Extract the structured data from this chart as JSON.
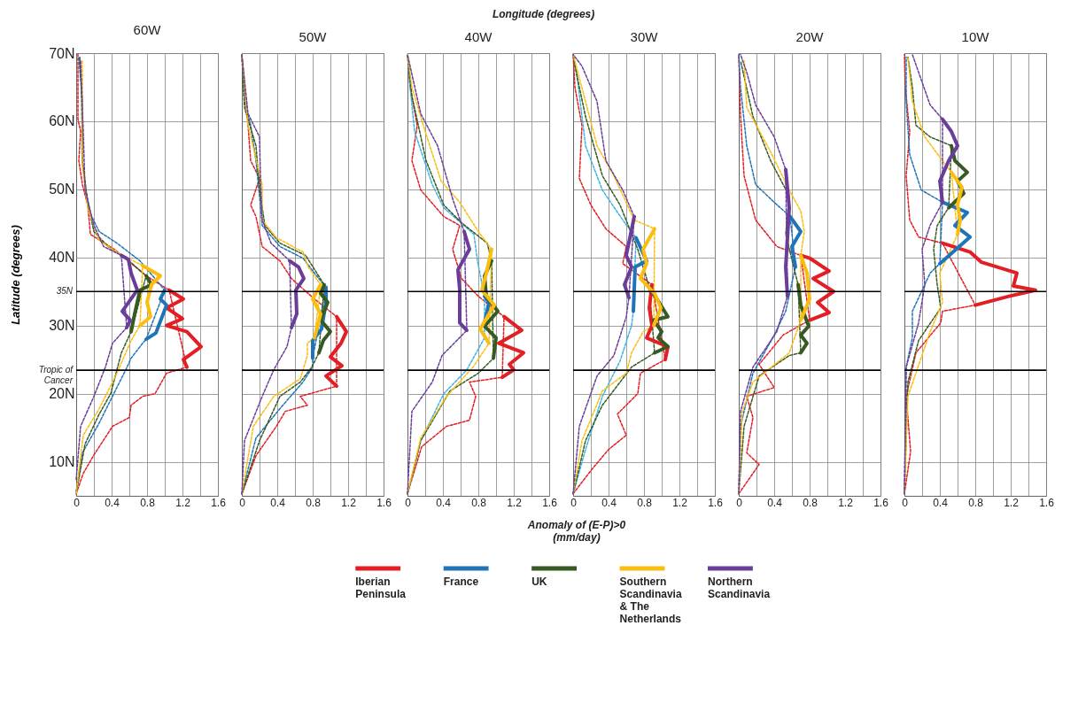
{
  "chart_data": [
    {
      "type": "line",
      "title": "60W",
      "ylabel": "Latitude (degrees)",
      "annotations": [
        "Longitude (degrees)",
        "Anomaly of (E-P)>0\n(mm/day)"
      ],
      "legend": "bottom",
      "grid": true,
      "xlim": [
        0,
        1.6
      ],
      "xticks": [
        0,
        {
          "value": 0.2,
          "label": null
        },
        0.4,
        {
          "value": 0.6,
          "label": null
        },
        0.8,
        {
          "value": 1,
          "label": null
        },
        1.2,
        {
          "value": 1.4,
          "label": null
        },
        1.6
      ],
      "ylim": [
        5,
        70
      ],
      "yticks": [
        {
          "value": 10,
          "label": "10N"
        },
        {
          "value": 20,
          "label": "20N"
        },
        {
          "value": 30,
          "label": "30N"
        },
        {
          "value": 40,
          "label": "40N"
        },
        {
          "value": 50,
          "label": "50N"
        },
        {
          "value": 60,
          "label": "60N"
        },
        {
          "value": 70,
          "label": "70N"
        }
      ],
      "ref_lines": [
        {
          "axis": "y",
          "value": 35,
          "label": "35N"
        },
        {
          "axis": "y",
          "value": 23.44,
          "label": "Tropic of Cancer"
        }
      ],
      "series": [
        {
          "color": "#e31e24",
          "line_style": "dashed",
          "x": [
            0,
            0.08,
            0.2,
            0.41,
            0.6,
            0.62,
            0.75,
            0.89,
            1.02,
            1.25,
            1.05,
            0.79,
            0.43,
            0.16,
            0.15,
            0.13,
            0.07,
            0.03,
            0.05,
            0.02,
            0.02
          ],
          "values": [
            5.3,
            8.3,
            11,
            15.2,
            16.5,
            18.3,
            19.6,
            20,
            23,
            23.9,
            35.2,
            37.3,
            41.2,
            43.4,
            45,
            47.7,
            50.7,
            54.2,
            58.5,
            60.3,
            69.8
          ]
        },
        {
          "color": "#1f74b9",
          "line_style": "dashed",
          "x": [
            0,
            0.07,
            0.26,
            0.39,
            0.49,
            0.56,
            0.62,
            0.75,
            0.79,
            1.0,
            0.72,
            0.46,
            0.26,
            0.16,
            0.11,
            0.07,
            0.07,
            0.03
          ],
          "values": [
            5.7,
            11.3,
            15.7,
            19.1,
            21.7,
            23.5,
            25.2,
            27.4,
            28,
            35.2,
            39.5,
            42.1,
            43.8,
            46.4,
            49.9,
            54.2,
            62.9,
            69.4
          ]
        },
        {
          "color": "#375a22",
          "line_style": "dashed",
          "x": [
            0,
            0.1,
            0.26,
            0.39,
            0.51,
            0.62,
            0.79,
            0.56,
            0.36,
            0.2,
            0.13,
            0.07,
            0.06,
            0.04
          ],
          "values": [
            5.3,
            12.6,
            17,
            20,
            26,
            29.1,
            37.3,
            39.9,
            41.6,
            43.8,
            48.1,
            54.2,
            65,
            69.5
          ]
        },
        {
          "color": "#fbbd0f",
          "line_style": "dashed",
          "x": [
            0,
            0.08,
            0.26,
            0.46,
            0.62,
            0.72,
            0.75,
            0.52,
            0.26,
            0.13,
            0.07,
            0.07
          ],
          "values": [
            5.3,
            13.9,
            17.8,
            23,
            27.8,
            30,
            38.8,
            40.3,
            42.5,
            47.3,
            53.3,
            68.9
          ]
        },
        {
          "color": "#6a3d9a",
          "line_style": "dashed",
          "x": [
            0,
            0.05,
            0.2,
            0.33,
            0.41,
            0.57,
            0.51,
            0.31,
            0.2,
            0.1,
            0.08,
            0.05
          ],
          "values": [
            7.4,
            15.2,
            19.6,
            23.9,
            27.4,
            29.7,
            40.3,
            41.6,
            44.7,
            49.9,
            58.5,
            68.9
          ]
        },
        {
          "name": "Iberian Peninsula",
          "color": "#e31e24",
          "x": [
            1.25,
            1.21,
            1.41,
            1.25,
            1.02,
            1.2,
            1.02,
            1.21,
            1.05
          ],
          "values": [
            23.9,
            25,
            26.9,
            29.1,
            30,
            31,
            32.6,
            33.9,
            35.2
          ]
        },
        {
          "name": "France",
          "color": "#1f74b9",
          "x": [
            0.79,
            0.9,
            1.02,
            0.95,
            1.0
          ],
          "values": [
            28,
            28.9,
            33,
            33.9,
            35.2
          ]
        },
        {
          "name": "UK",
          "color": "#375a22",
          "x": [
            0.62,
            0.66,
            0.72,
            0.85,
            0.79
          ],
          "values": [
            29.1,
            31.7,
            35.2,
            36,
            37.3
          ]
        },
        {
          "name": "Southern Scandinavia & The Netherlands",
          "color": "#fbbd0f",
          "x": [
            0.72,
            0.84,
            0.8,
            0.85,
            0.95,
            0.75
          ],
          "values": [
            30,
            31.3,
            33.4,
            36,
            37.3,
            38.8
          ]
        },
        {
          "name": "Northern Scandinavia",
          "color": "#6a3d9a",
          "x": [
            0.57,
            0.61,
            0.52,
            0.69,
            0.62,
            0.59,
            0.51
          ],
          "values": [
            29.7,
            30.8,
            32.1,
            35.2,
            37.7,
            39.7,
            40.3
          ]
        }
      ]
    },
    {
      "type": "line",
      "title": "50W",
      "grid": true,
      "tick_labels": "x",
      "xlim": [
        0,
        1.6
      ],
      "xticks": [
        0,
        {
          "value": 0.2,
          "label": null
        },
        0.4,
        {
          "value": 0.6,
          "label": null
        },
        0.8,
        {
          "value": 1,
          "label": null
        },
        1.2,
        {
          "value": 1.4,
          "label": null
        },
        1.6
      ],
      "ylim": [
        5,
        70
      ],
      "yticks": [
        {
          "value": 10,
          "label": null
        },
        {
          "value": 20,
          "label": null
        },
        {
          "value": 30,
          "label": null
        },
        {
          "value": 40,
          "label": null
        },
        {
          "value": 50,
          "label": null
        },
        {
          "value": 60,
          "label": null
        },
        {
          "value": 70,
          "label": null
        }
      ],
      "ref_lines": [
        {
          "axis": "y",
          "value": 35
        },
        {
          "axis": "y",
          "value": 23.44
        }
      ],
      "series": [
        {
          "color": "#e31e24",
          "line_style": "dashed",
          "x": [
            0,
            0.16,
            0.39,
            0.49,
            0.74,
            0.66,
            1.07,
            1.07,
            0.82,
            0.56,
            0.43,
            0.23,
            0.16,
            0.1,
            0.2,
            0.1,
            0.07,
            0
          ],
          "values": [
            5.3,
            10.9,
            15.2,
            17.4,
            18.3,
            19.6,
            21.1,
            31.3,
            33.9,
            36.9,
            39.5,
            41.6,
            46,
            47.7,
            51.6,
            54.2,
            59.4,
            69.8
          ]
        },
        {
          "color": "#1f74b9",
          "line_style": "dashed",
          "x": [
            0,
            0.16,
            0.43,
            0.69,
            0.8,
            0.8,
            0.95,
            0.82,
            0.69,
            0.43,
            0.23,
            0.2,
            0.16,
            0.1,
            0.03,
            0
          ],
          "values": [
            5.3,
            13.5,
            17.8,
            21.7,
            23.9,
            25.2,
            35.6,
            37.7,
            39.9,
            41.6,
            44.7,
            49,
            54.2,
            59.4,
            62.9,
            69.8
          ]
        },
        {
          "color": "#375a22",
          "line_style": "dashed",
          "x": [
            0,
            0.2,
            0.43,
            0.66,
            0.79,
            0.87,
            0.93,
            0.72,
            0.43,
            0.26,
            0.2,
            0.16,
            0.03,
            0
          ],
          "values": [
            5.3,
            13.1,
            19.6,
            21.7,
            23.9,
            26,
            36,
            40.3,
            42.1,
            44.7,
            49.9,
            56.4,
            62,
            69.8
          ]
        },
        {
          "color": "#fbbd0f",
          "line_style": "dashed",
          "x": [
            0,
            0.13,
            0.36,
            0.66,
            0.74,
            0.74,
            0.82,
            0.89,
            0.75,
            0.69,
            0.39,
            0.23,
            0.23,
            0.07,
            0
          ],
          "values": [
            5.3,
            15.2,
            19.6,
            22.2,
            25.6,
            27.4,
            28.2,
            36,
            38.6,
            40.8,
            42.9,
            45.5,
            50.7,
            59.4,
            69.8
          ]
        },
        {
          "color": "#6a3d9a",
          "line_style": "dashed",
          "x": [
            0,
            0.03,
            0.23,
            0.36,
            0.51,
            0.56,
            0.54,
            0.33,
            0.23,
            0.21,
            0.2,
            0.07,
            0
          ],
          "values": [
            5.3,
            13.1,
            19.6,
            23.5,
            26.9,
            29.7,
            39.5,
            42.1,
            45.5,
            51.6,
            57.7,
            61.1,
            69.8
          ]
        },
        {
          "color": "#e31e24",
          "x": [
            1.07,
            0.95,
            1.13,
            1.0,
            1.12,
            1.18,
            1.07
          ],
          "values": [
            21.1,
            22.6,
            24.1,
            25.4,
            27.4,
            29.1,
            31.3
          ]
        },
        {
          "color": "#1f74b9",
          "x": [
            0.8,
            0.8,
            0.9,
            0.95,
            0.95
          ],
          "values": [
            25.2,
            27.8,
            29.5,
            33.4,
            35.6
          ]
        },
        {
          "color": "#375a22",
          "x": [
            0.87,
            0.92,
            1.0,
            0.89,
            0.97,
            0.89,
            0.93
          ],
          "values": [
            26,
            27.8,
            29.1,
            30.8,
            33.4,
            34.7,
            36
          ]
        },
        {
          "color": "#fbbd0f",
          "x": [
            0.82,
            0.89,
            0.8,
            0.89
          ],
          "values": [
            28.2,
            31.7,
            33.9,
            36
          ]
        },
        {
          "color": "#6a3d9a",
          "x": [
            0.56,
            0.62,
            0.61,
            0.7,
            0.64,
            0.54
          ],
          "values": [
            29.7,
            31.7,
            35.2,
            36.9,
            38.6,
            39.5
          ]
        }
      ]
    },
    {
      "type": "line",
      "title": "40W",
      "grid": true,
      "tick_labels": "x",
      "xlim": [
        0,
        1.6
      ],
      "xticks": [
        0,
        {
          "value": 0.2,
          "label": null
        },
        0.4,
        {
          "value": 0.6,
          "label": null
        },
        0.8,
        {
          "value": 1,
          "label": null
        },
        1.2,
        {
          "value": 1.4,
          "label": null
        },
        1.6
      ],
      "ylim": [
        5,
        70
      ],
      "yticks": [
        {
          "value": 10,
          "label": null
        },
        {
          "value": 20,
          "label": null
        },
        {
          "value": 30,
          "label": null
        },
        {
          "value": 40,
          "label": null
        },
        {
          "value": 50,
          "label": null
        },
        {
          "value": 60,
          "label": null
        },
        {
          "value": 70,
          "label": null
        }
      ],
      "ref_lines": [
        {
          "axis": "y",
          "value": 35
        },
        {
          "axis": "y",
          "value": 23.44
        }
      ],
      "series": [
        {
          "color": "#e31e24",
          "line_style": "dashed",
          "x": [
            0,
            0.16,
            0.44,
            0.7,
            0.77,
            0.7,
            1.07,
            1.09,
            0.8,
            0.61,
            0.51,
            0.59,
            0.41,
            0.15,
            0.05,
            0.11,
            0.03,
            0
          ],
          "values": [
            5.3,
            12.2,
            15.2,
            16.1,
            19.6,
            21.7,
            22.4,
            31.3,
            34.3,
            36.9,
            41.2,
            44.7,
            46,
            49.9,
            54.2,
            59.4,
            65,
            69.8
          ]
        },
        {
          "color": "#3eb3e4",
          "line_style": "dashed",
          "x": [
            0,
            0.15,
            0.41,
            0.67,
            0.87,
            0.87,
            0.87,
            0.79,
            0.75,
            0.41,
            0.28,
            0.08,
            0.03,
            0
          ],
          "values": [
            5.3,
            13.1,
            20,
            23.5,
            28.2,
            30.4,
            34.3,
            39.5,
            43.4,
            47.3,
            50.7,
            58.5,
            65,
            69.8
          ]
        },
        {
          "color": "#375a22",
          "line_style": "dashed",
          "x": [
            0,
            0.15,
            0.48,
            0.8,
            0.97,
            0.95,
            0.9,
            0.61,
            0.41,
            0.21,
            0.05,
            0
          ],
          "values": [
            5.3,
            13.1,
            20.4,
            23,
            25.2,
            39.5,
            42.1,
            45.1,
            47.7,
            54.2,
            63.7,
            69.8
          ]
        },
        {
          "color": "#fbbd0f",
          "line_style": "dashed",
          "x": [
            0,
            0.15,
            0.44,
            0.74,
            0.92,
            0.95,
            0.8,
            0.59,
            0.38,
            0.2,
            0.05,
            0
          ],
          "values": [
            5.3,
            13.5,
            19.6,
            23.9,
            27.4,
            41.2,
            43.8,
            48.1,
            51.2,
            58.5,
            65,
            69.8
          ]
        },
        {
          "color": "#6a3d9a",
          "line_style": "dashed",
          "x": [
            0,
            0.05,
            0.28,
            0.39,
            0.67,
            0.64,
            0.51,
            0.34,
            0.15,
            0
          ],
          "values": [
            5.3,
            17.4,
            21.7,
            25.6,
            29.3,
            43.8,
            48.6,
            56.4,
            61.1,
            69.8
          ]
        },
        {
          "color": "#e31e24",
          "x": [
            1.07,
            1.2,
            1.15,
            1.31,
            1.03,
            1.29,
            1.09
          ],
          "values": [
            22.4,
            23.5,
            24.3,
            26,
            27.4,
            29.3,
            31.3
          ]
        },
        {
          "color": "#1f74b9",
          "x": [
            0.87,
            0.92,
            0.87
          ],
          "values": [
            30.4,
            33.4,
            34.3
          ]
        },
        {
          "color": "#375a22",
          "x": [
            0.97,
            1.0,
            0.87,
            1.02,
            0.89,
            0.87,
            0.95
          ],
          "values": [
            25.2,
            28.2,
            29.9,
            32.1,
            34.3,
            37.3,
            39.5
          ]
        },
        {
          "color": "#fbbd0f",
          "x": [
            0.92,
            0.82,
            0.98,
            0.84,
            0.89,
            0.95
          ],
          "values": [
            27.4,
            29.5,
            33,
            35.2,
            37.7,
            41.2
          ]
        },
        {
          "color": "#6a3d9a",
          "x": [
            0.67,
            0.59,
            0.59,
            0.57,
            0.7,
            0.64
          ],
          "values": [
            29.3,
            30.4,
            35.2,
            38.2,
            41.2,
            43.8
          ]
        }
      ]
    },
    {
      "type": "line",
      "title": "30W",
      "grid": true,
      "tick_labels": "x",
      "xlim": [
        0,
        1.6
      ],
      "xticks": [
        0,
        {
          "value": 0.2,
          "label": null
        },
        0.4,
        {
          "value": 0.6,
          "label": null
        },
        0.8,
        {
          "value": 1,
          "label": null
        },
        1.2,
        {
          "value": 1.4,
          "label": null
        },
        1.6
      ],
      "ylim": [
        5,
        70
      ],
      "yticks": [
        {
          "value": 10,
          "label": null
        },
        {
          "value": 20,
          "label": null
        },
        {
          "value": 30,
          "label": null
        },
        {
          "value": 40,
          "label": null
        },
        {
          "value": 50,
          "label": null
        },
        {
          "value": 60,
          "label": null
        },
        {
          "value": 70,
          "label": null
        }
      ],
      "ref_lines": [
        {
          "axis": "y",
          "value": 35
        },
        {
          "axis": "y",
          "value": 23.44
        }
      ],
      "series": [
        {
          "color": "#e31e24",
          "line_style": "dashed",
          "x": [
            0,
            0.2,
            0.4,
            0.6,
            0.5,
            0.73,
            0.76,
            1.04,
            0.89,
            0.56,
            0.6,
            0.37,
            0.2,
            0.07,
            0.1,
            0.02,
            0
          ],
          "values": [
            5.3,
            8.7,
            11.8,
            13.9,
            17,
            20,
            23,
            25,
            36,
            39.1,
            41.6,
            44.2,
            47.7,
            51.6,
            59.4,
            65,
            69.8
          ]
        },
        {
          "color": "#3eb3e4",
          "line_style": "dashed",
          "x": [
            0,
            0.14,
            0.33,
            0.53,
            0.66,
            0.68,
            0.71,
            0.56,
            0.33,
            0.14,
            0.04,
            0
          ],
          "values": [
            5.3,
            11.8,
            19.6,
            24.8,
            30,
            32.1,
            42.9,
            45.5,
            49.9,
            56.4,
            67.2,
            69.8
          ]
        },
        {
          "color": "#375a22",
          "line_style": "dashed",
          "x": [
            0,
            0.14,
            0.33,
            0.66,
            0.92,
            0.86,
            0.73,
            0.53,
            0.33,
            0.14,
            0.02,
            0
          ],
          "values": [
            5.3,
            13.1,
            18.3,
            23.9,
            26,
            35.6,
            41.2,
            47.7,
            52,
            60.7,
            68.1,
            69.8
          ]
        },
        {
          "color": "#fbbd0f",
          "line_style": "dashed",
          "x": [
            0,
            0.1,
            0.33,
            0.6,
            0.66,
            0.79,
            0.91,
            0.92,
            0.69,
            0.46,
            0.27,
            0.14,
            0
          ],
          "values": [
            5.3,
            13.1,
            20.4,
            23,
            26,
            29.1,
            30,
            44.2,
            45.5,
            52,
            56.4,
            62.9,
            69.8
          ]
        },
        {
          "color": "#6a3d9a",
          "line_style": "dashed",
          "x": [
            0,
            0.07,
            0.27,
            0.46,
            0.6,
            0.63,
            0.69,
            0.56,
            0.37,
            0.27,
            0.1,
            0
          ],
          "values": [
            5.3,
            15.2,
            22.6,
            25.6,
            31.3,
            34.1,
            46,
            49.9,
            54.2,
            62.9,
            68.1,
            69.8
          ]
        },
        {
          "color": "#e31e24",
          "x": [
            1.04,
            1.07,
            0.83,
            0.89,
            0.86,
            0.89
          ],
          "values": [
            25,
            26.9,
            28.2,
            30,
            32.6,
            36
          ]
        },
        {
          "color": "#1f74b9",
          "x": [
            0.68,
            0.7,
            0.83,
            0.71
          ],
          "values": [
            32.1,
            38.6,
            39.5,
            42.9
          ]
        },
        {
          "color": "#375a22",
          "x": [
            0.92,
            1.07,
            0.96,
            1.0,
            0.91,
            1.07,
            0.97,
            0.86
          ],
          "values": [
            26,
            26.9,
            28.2,
            29.1,
            30.8,
            31.3,
            33.4,
            35.6
          ]
        },
        {
          "color": "#fbbd0f",
          "x": [
            0.91,
            0.99,
            0.92,
            0.76,
            0.83,
            0.79,
            0.92
          ],
          "values": [
            30,
            32.6,
            34.7,
            36.9,
            39.1,
            41.2,
            44.2
          ]
        },
        {
          "color": "#6a3d9a",
          "x": [
            0.63,
            0.58,
            0.66,
            0.6,
            0.69
          ],
          "values": [
            34.1,
            36,
            38.6,
            40.3,
            46
          ]
        }
      ]
    },
    {
      "type": "line",
      "title": "20W",
      "grid": true,
      "tick_labels": "x",
      "xlim": [
        0,
        1.6
      ],
      "xticks": [
        0,
        {
          "value": 0.2,
          "label": null
        },
        0.4,
        {
          "value": 0.6,
          "label": null
        },
        0.8,
        {
          "value": 1,
          "label": null
        },
        1.2,
        {
          "value": 1.4,
          "label": null
        },
        1.6
      ],
      "ylim": [
        5,
        70
      ],
      "yticks": [
        {
          "value": 10,
          "label": null
        },
        {
          "value": 20,
          "label": null
        },
        {
          "value": 30,
          "label": null
        },
        {
          "value": 40,
          "label": null
        },
        {
          "value": 50,
          "label": null
        },
        {
          "value": 60,
          "label": null
        },
        {
          "value": 70,
          "label": null
        }
      ],
      "ref_lines": [
        {
          "axis": "y",
          "value": 35
        },
        {
          "axis": "y",
          "value": 23.44
        }
      ],
      "series": [
        {
          "color": "#e31e24",
          "line_style": "dashed",
          "x": [
            0,
            0.23,
            0.09,
            0.16,
            0.09,
            0.4,
            0.23,
            0.5,
            0.8,
            0.7,
            0.43,
            0.19,
            0.06,
            0.02,
            0
          ],
          "values": [
            5.3,
            9.6,
            11.3,
            16.5,
            19.6,
            20.9,
            24.3,
            28.6,
            30.8,
            40.3,
            41.6,
            45.5,
            52,
            60.7,
            69.8
          ]
        },
        {
          "color": "#1f74b9",
          "line_style": "dashed",
          "x": [
            0,
            0.02,
            0.16,
            0.4,
            0.53,
            0.64,
            0.58,
            0.4,
            0.19,
            0.09,
            0.02,
            0
          ],
          "values": [
            5.3,
            15.2,
            23,
            28.6,
            32.1,
            38.6,
            46,
            48.1,
            50.7,
            56.4,
            65,
            69.8
          ]
        },
        {
          "color": "#375a22",
          "line_style": "dashed",
          "x": [
            0,
            0.06,
            0.23,
            0.57,
            0.7,
            0.67,
            0.53,
            0.57,
            0.36,
            0.16,
            0.02
          ],
          "values": [
            5.3,
            15.2,
            22.6,
            25.6,
            26,
            36,
            43.4,
            49,
            54.2,
            60.7,
            68.9
          ]
        },
        {
          "color": "#fbbd0f",
          "line_style": "dashed",
          "x": [
            0,
            0.04,
            0.16,
            0.57,
            0.7,
            0.7,
            0.74,
            0.7,
            0.57,
            0.36,
            0.09,
            0.06
          ],
          "values": [
            5.3,
            17.4,
            21.7,
            26,
            30.8,
            40.3,
            43.8,
            46.8,
            49.9,
            55.5,
            62,
            68.9
          ]
        },
        {
          "color": "#6a3d9a",
          "line_style": "dashed",
          "x": [
            0,
            0.02,
            0.16,
            0.43,
            0.55,
            0.53,
            0.4,
            0.19,
            0.09,
            0.02
          ],
          "values": [
            5.3,
            17.4,
            23.9,
            29.1,
            34.3,
            52.9,
            57.7,
            62.4,
            67.2,
            69.8
          ]
        },
        {
          "color": "#e31e24",
          "x": [
            0.8,
            1.02,
            0.89,
            1.07,
            0.84,
            1.02,
            0.8,
            0.7
          ],
          "values": [
            30.8,
            31.9,
            33.4,
            35,
            36.9,
            38,
            39.9,
            40.3
          ]
        },
        {
          "color": "#1f74b9",
          "x": [
            0.64,
            0.6,
            0.7,
            0.58
          ],
          "values": [
            38.6,
            41.6,
            43.8,
            46
          ]
        },
        {
          "color": "#375a22",
          "x": [
            0.7,
            0.77,
            0.7,
            0.79,
            0.7,
            0.67
          ],
          "values": [
            26,
            27.4,
            28.6,
            29.9,
            33,
            36
          ]
        },
        {
          "color": "#fbbd0f",
          "x": [
            0.7,
            0.8,
            0.77,
            0.7
          ],
          "values": [
            30.8,
            33.9,
            37.7,
            40.3
          ]
        },
        {
          "color": "#6a3d9a",
          "x": [
            0.55,
            0.53,
            0.57,
            0.53
          ],
          "values": [
            34.3,
            38.6,
            47.3,
            52.9
          ]
        }
      ]
    },
    {
      "type": "line",
      "title": "10W",
      "grid": true,
      "tick_labels": "x",
      "xlim": [
        0,
        1.6
      ],
      "xticks": [
        0,
        {
          "value": 0.2,
          "label": null
        },
        0.4,
        {
          "value": 0.6,
          "label": null
        },
        0.8,
        {
          "value": 1,
          "label": null
        },
        1.2,
        {
          "value": 1.4,
          "label": null
        },
        1.6
      ],
      "ylim": [
        5,
        70
      ],
      "yticks": [
        {
          "value": 10,
          "label": null
        },
        {
          "value": 20,
          "label": null
        },
        {
          "value": 30,
          "label": null
        },
        {
          "value": 40,
          "label": null
        },
        {
          "value": 50,
          "label": null
        },
        {
          "value": 60,
          "label": null
        },
        {
          "value": 70,
          "label": null
        }
      ],
      "ref_lines": [
        {
          "axis": "y",
          "value": 35
        },
        {
          "axis": "y",
          "value": 23.44
        }
      ],
      "series": [
        {
          "color": "#e31e24",
          "line_style": "dashed",
          "x": [
            0,
            0.07,
            0.02,
            0.13,
            0.41,
            0.43,
            0.8,
            0.43,
            0.16,
            0.06,
            0.02,
            0.06,
            0.01,
            0
          ],
          "values": [
            5.3,
            11.5,
            19.6,
            26,
            30.4,
            32.1,
            33,
            42.1,
            43,
            45.5,
            52,
            58.5,
            65,
            69.8
          ]
        },
        {
          "color": "#1f74b9",
          "line_style": "dashed",
          "x": [
            0,
            0.02,
            0.09,
            0.09,
            0.29,
            0.4,
            0.43,
            0.19,
            0.06,
            0.02,
            0.02
          ],
          "values": [
            5.3,
            23.9,
            28.2,
            32.1,
            37.7,
            39.1,
            48.1,
            49.9,
            55.1,
            62.9,
            69.4
          ]
        },
        {
          "color": "#375a22",
          "line_style": "dashed",
          "x": [
            0,
            0.04,
            0.16,
            0.41,
            0.37,
            0.33,
            0.37,
            0.5,
            0.53,
            0.29,
            0.13,
            0.09,
            0.04
          ],
          "values": [
            5.3,
            21.7,
            27.8,
            32.6,
            36,
            41.2,
            44.7,
            47.3,
            56.4,
            57.7,
            59.4,
            65,
            69.4
          ]
        },
        {
          "color": "#fbbd0f",
          "line_style": "dashed",
          "x": [
            0,
            0.04,
            0.29,
            0.43,
            0.4,
            0.6,
            0.53,
            0.43,
            0.23,
            0.09,
            0.04
          ],
          "values": [
            5.3,
            19.6,
            29.1,
            33.4,
            37.7,
            43.4,
            52.5,
            54.2,
            57.7,
            62.9,
            69.4
          ]
        },
        {
          "color": "#6a3d9a",
          "line_style": "dashed",
          "x": [
            0,
            0.02,
            0.16,
            0.23,
            0.2,
            0.29,
            0.43,
            0.43,
            0.29,
            0.16,
            0.09
          ],
          "values": [
            5.3,
            23.9,
            30.4,
            36,
            41.2,
            44.7,
            48.1,
            60.3,
            62.4,
            67.2,
            69.8
          ]
        },
        {
          "color": "#e31e24",
          "x": [
            0.8,
            1.18,
            1.48,
            1.23,
            1.27,
            0.87,
            0.74,
            0.43
          ],
          "values": [
            33,
            34.3,
            35.2,
            35.8,
            37.7,
            39.3,
            40.8,
            42.1
          ]
        },
        {
          "color": "#1f74b9",
          "x": [
            0.4,
            0.74,
            0.57,
            0.71,
            0.43
          ],
          "values": [
            39.1,
            43,
            44.7,
            46.6,
            48.1
          ]
        },
        {
          "color": "#375a22",
          "x": [
            0.5,
            0.67,
            0.6,
            0.71,
            0.57,
            0.53
          ],
          "values": [
            47.3,
            49.4,
            51.2,
            52.5,
            54.2,
            56.4
          ]
        },
        {
          "color": "#fbbd0f",
          "x": [
            0.6,
            0.63,
            0.6,
            0.65,
            0.53
          ],
          "values": [
            43.4,
            45.5,
            47.7,
            50.3,
            52.5
          ]
        },
        {
          "color": "#6a3d9a",
          "x": [
            0.43,
            0.4,
            0.5,
            0.6,
            0.53,
            0.43
          ],
          "values": [
            48.1,
            51.2,
            54.2,
            56.4,
            58.5,
            60.3
          ]
        }
      ]
    }
  ]
}
